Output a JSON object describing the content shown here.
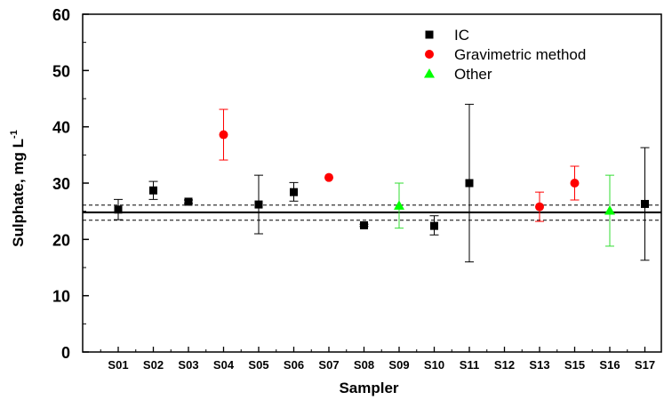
{
  "chart_data": {
    "type": "scatter",
    "title": "",
    "xlabel": "Sampler",
    "ylabel": "Sulphate, mg L",
    "ylabel_superscript": "-1",
    "ylim": [
      0,
      60
    ],
    "yticks": [
      0,
      10,
      20,
      30,
      40,
      50,
      60
    ],
    "categories": [
      "S01",
      "S02",
      "S03",
      "S04",
      "S05",
      "S06",
      "S07",
      "S08",
      "S09",
      "S10",
      "S11",
      "S12",
      "S13",
      "S15",
      "S16",
      "S17"
    ],
    "reference_lines": {
      "mean": 24.8,
      "upper": 26.1,
      "lower": 23.4
    },
    "legend_position": "top-right",
    "series": [
      {
        "name": "IC",
        "marker": "square",
        "color": "#000000",
        "points": [
          {
            "x": "S01",
            "y": 25.3,
            "low": 23.5,
            "high": 27.1
          },
          {
            "x": "S02",
            "y": 28.7,
            "low": 27.1,
            "high": 30.3
          },
          {
            "x": "S03",
            "y": 26.7,
            "low": 26.4,
            "high": 27.0
          },
          {
            "x": "S05",
            "y": 26.2,
            "low": 21.0,
            "high": 31.4
          },
          {
            "x": "S06",
            "y": 28.4,
            "low": 26.8,
            "high": 30.1
          },
          {
            "x": "S08",
            "y": 22.5,
            "low": 22.3,
            "high": 22.7
          },
          {
            "x": "S10",
            "y": 22.4,
            "low": 20.8,
            "high": 24.2
          },
          {
            "x": "S11",
            "y": 30.0,
            "low": 16.0,
            "high": 44.0
          },
          {
            "x": "S17",
            "y": 26.3,
            "low": 16.3,
            "high": 36.3
          }
        ]
      },
      {
        "name": "Gravimetric method",
        "marker": "circle",
        "color": "#ff0000",
        "points": [
          {
            "x": "S04",
            "y": 38.6,
            "low": 34.1,
            "high": 43.1
          },
          {
            "x": "S07",
            "y": 31.0,
            "low": 31.0,
            "high": 31.0
          },
          {
            "x": "S13",
            "y": 25.8,
            "low": 23.2,
            "high": 28.4
          },
          {
            "x": "S15",
            "y": 30.0,
            "low": 27.0,
            "high": 33.0
          }
        ]
      },
      {
        "name": "Other",
        "marker": "triangle",
        "color": "#00ff00",
        "points": [
          {
            "x": "S09",
            "y": 26.0,
            "low": 22.0,
            "high": 30.0
          },
          {
            "x": "S16",
            "y": 25.1,
            "low": 18.8,
            "high": 31.4
          }
        ]
      }
    ]
  }
}
